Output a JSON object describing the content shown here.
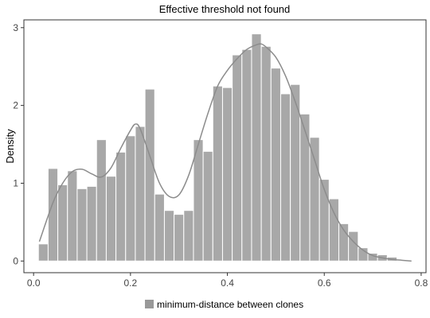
{
  "chart_data": {
    "type": "bar",
    "title": "Effective threshold not found",
    "xlabel": "",
    "ylabel": "Density",
    "xlim": [
      -0.02,
      0.81
    ],
    "ylim": [
      -0.15,
      3.1
    ],
    "grid": false,
    "legend_position": "bottom",
    "x_ticks": [
      0.0,
      0.2,
      0.4,
      0.6,
      0.8
    ],
    "x_tick_labels": [
      "0.0",
      "0.2",
      "0.4",
      "0.6",
      "0.8"
    ],
    "y_ticks": [
      0,
      1,
      2,
      3
    ],
    "y_tick_labels": [
      "0",
      "1",
      "2",
      "3"
    ],
    "bin_width": 0.02,
    "bins": {
      "x": [
        0.02,
        0.04,
        0.06,
        0.08,
        0.1,
        0.12,
        0.14,
        0.16,
        0.18,
        0.2,
        0.22,
        0.24,
        0.26,
        0.28,
        0.3,
        0.32,
        0.34,
        0.36,
        0.38,
        0.4,
        0.42,
        0.44,
        0.46,
        0.48,
        0.5,
        0.52,
        0.54,
        0.56,
        0.58,
        0.6,
        0.62,
        0.64,
        0.66,
        0.68,
        0.7,
        0.72,
        0.74
      ],
      "values": [
        0.22,
        1.19,
        0.98,
        1.16,
        0.93,
        0.96,
        1.56,
        1.09,
        1.4,
        1.61,
        1.73,
        2.21,
        0.86,
        0.65,
        0.6,
        0.65,
        1.56,
        1.41,
        2.25,
        2.23,
        2.65,
        2.72,
        2.92,
        2.76,
        2.48,
        2.15,
        2.27,
        1.89,
        1.59,
        1.05,
        0.8,
        0.48,
        0.38,
        0.17,
        0.1,
        0.08,
        0.05
      ]
    },
    "density": {
      "x": [
        0.012,
        0.04,
        0.06,
        0.08,
        0.1,
        0.12,
        0.14,
        0.16,
        0.18,
        0.2,
        0.21,
        0.22,
        0.24,
        0.26,
        0.28,
        0.3,
        0.32,
        0.34,
        0.36,
        0.38,
        0.4,
        0.42,
        0.44,
        0.46,
        0.47,
        0.48,
        0.5,
        0.52,
        0.54,
        0.56,
        0.58,
        0.6,
        0.62,
        0.64,
        0.66,
        0.68,
        0.7,
        0.72,
        0.74,
        0.76,
        0.78
      ],
      "values": [
        0.25,
        0.75,
        1.0,
        1.15,
        1.18,
        1.12,
        1.08,
        1.2,
        1.45,
        1.68,
        1.76,
        1.7,
        1.35,
        1.0,
        0.83,
        0.85,
        1.1,
        1.5,
        1.9,
        2.25,
        2.45,
        2.6,
        2.72,
        2.78,
        2.79,
        2.75,
        2.62,
        2.38,
        2.05,
        1.68,
        1.3,
        0.92,
        0.62,
        0.4,
        0.25,
        0.14,
        0.07,
        0.04,
        0.02,
        0.01,
        0.0
      ]
    },
    "series": [
      {
        "name": "minimum-distance between clones",
        "color": "#999999"
      }
    ],
    "colors": {
      "bar_fill": "#a8a8a8",
      "bar_stroke": "#ffffff",
      "curve": "#8c8c8c",
      "axis": "#333333"
    }
  }
}
